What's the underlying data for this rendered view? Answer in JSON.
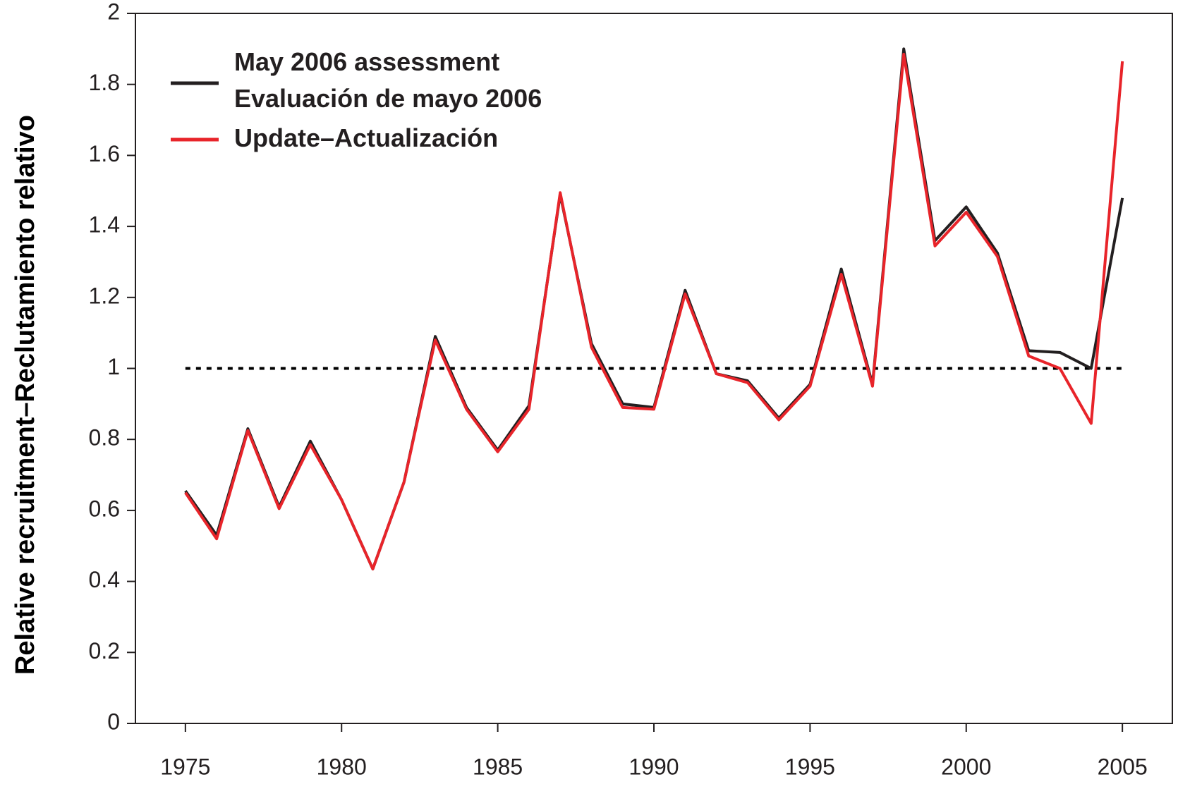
{
  "chart_data": {
    "type": "line",
    "ylabel": "Relative recruitment–Reclutamiento relativo",
    "x": [
      1975,
      1976,
      1977,
      1978,
      1979,
      1980,
      1981,
      1982,
      1983,
      1984,
      1985,
      1986,
      1987,
      1988,
      1989,
      1990,
      1991,
      1992,
      1993,
      1994,
      1995,
      1996,
      1997,
      1998,
      1999,
      2000,
      2001,
      2002,
      2003,
      2004,
      2005
    ],
    "series": [
      {
        "name": "May 2006 assessment\nEvaluación de mayo 2006",
        "color": "#231f20",
        "values": [
          0.655,
          0.53,
          0.83,
          0.61,
          0.795,
          0.63,
          0.435,
          0.68,
          1.09,
          0.89,
          0.77,
          0.895,
          1.49,
          1.07,
          0.9,
          0.89,
          1.22,
          0.985,
          0.965,
          0.86,
          0.955,
          1.28,
          0.955,
          1.9,
          1.36,
          1.455,
          1.325,
          1.05,
          1.045,
          1.0,
          1.48
        ]
      },
      {
        "name": "Update–Actualización",
        "color": "#e8242a",
        "values": [
          0.65,
          0.52,
          0.825,
          0.605,
          0.785,
          0.63,
          0.435,
          0.68,
          1.08,
          0.885,
          0.765,
          0.885,
          1.495,
          1.06,
          0.89,
          0.885,
          1.21,
          0.985,
          0.96,
          0.855,
          0.95,
          1.265,
          0.95,
          1.885,
          1.345,
          1.44,
          1.315,
          1.035,
          1.0,
          0.845,
          1.865
        ]
      }
    ],
    "reference_line": {
      "y": 1,
      "x": [
        1975,
        2005
      ]
    },
    "xlim": [
      1973.4,
      2006.6
    ],
    "ylim": [
      0,
      2
    ],
    "xticks": [
      1975,
      1980,
      1985,
      1990,
      1995,
      2000,
      2005
    ],
    "yticks": [
      0,
      0.2,
      0.4,
      0.6,
      0.8,
      1,
      1.2,
      1.4,
      1.6,
      1.8,
      2
    ],
    "legend": "upper left"
  }
}
